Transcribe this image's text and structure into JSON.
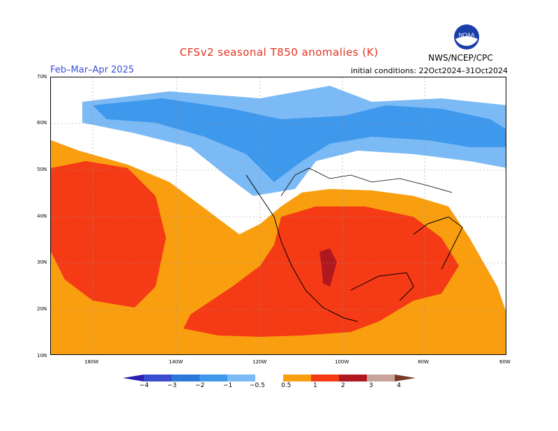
{
  "title": "CFSv2 seasonal T850 anomalies (K)",
  "period": "Feb–Mar–Apr 2025",
  "initial_conditions": "initial conditions: 22Oct2024–31Oct2024",
  "agency": "NWS/NCEP/CPC",
  "logo_text": "NOAA",
  "lat_labels": [
    "70N",
    "60N",
    "50N",
    "40N",
    "30N",
    "20N",
    "10N"
  ],
  "lon_labels": [
    "180W",
    "140W",
    "120W",
    "100W",
    "80W",
    "60W"
  ],
  "colorbar": {
    "labels": [
      "−4",
      "−3",
      "−2",
      "−1",
      "−0.5",
      "0.5",
      "1",
      "2",
      "3",
      "4"
    ],
    "colors": [
      "#2a1fb0",
      "#3a4cd0",
      "#2b78d8",
      "#3e98ec",
      "#7cbaf5",
      "#ffffff",
      "#f99e0f",
      "#f53a16",
      "#b01820",
      "#c7a39a",
      "#7a3a28"
    ]
  },
  "colors": {
    "cold_light": "#7cbaf5",
    "cold_mid": "#3e98ec",
    "warm_light": "#f99e0f",
    "warm_mid": "#f53a16",
    "warm_strong": "#b01820"
  }
}
